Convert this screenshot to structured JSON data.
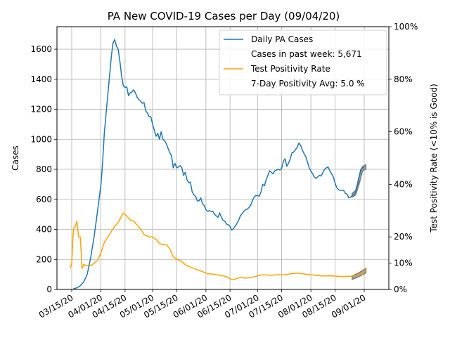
{
  "chart_data": {
    "type": "line",
    "title": "PA New COVID-19 Cases per Day (09/04/20)",
    "xlabel": "",
    "ylabel": "Cases",
    "ylabel_right": "Test Positivity Rate (<10% is Good)",
    "ylim": [
      0,
      1750
    ],
    "ylim_right": [
      0,
      100
    ],
    "grid": true,
    "legend_position": "top-right",
    "x_ticks": [
      {
        "date": "2020-03-15",
        "label": "03/15/20"
      },
      {
        "date": "2020-04-01",
        "label": "04/01/20"
      },
      {
        "date": "2020-04-15",
        "label": "04/15/20"
      },
      {
        "date": "2020-05-01",
        "label": "05/01/20"
      },
      {
        "date": "2020-05-15",
        "label": "05/15/20"
      },
      {
        "date": "2020-06-01",
        "label": "06/01/20"
      },
      {
        "date": "2020-06-15",
        "label": "06/15/20"
      },
      {
        "date": "2020-07-01",
        "label": "07/01/20"
      },
      {
        "date": "2020-07-15",
        "label": "07/15/20"
      },
      {
        "date": "2020-08-01",
        "label": "08/01/20"
      },
      {
        "date": "2020-08-15",
        "label": "08/15/20"
      },
      {
        "date": "2020-09-01",
        "label": "09/01/20"
      }
    ],
    "y_ticks": [
      0,
      200,
      400,
      600,
      800,
      1000,
      1200,
      1400,
      1600
    ],
    "y_ticks_right": [
      {
        "value": 0,
        "label": "0%"
      },
      {
        "value": 10,
        "label": "10%"
      },
      {
        "value": 20,
        "label": "20%"
      },
      {
        "value": 40,
        "label": "40%"
      },
      {
        "value": 60,
        "label": "60%"
      },
      {
        "value": 80,
        "label": "80%"
      },
      {
        "value": 100,
        "label": "100%"
      }
    ],
    "series": [
      {
        "name": "Daily PA Cases",
        "axis": "left",
        "color": "#1f77b4",
        "points": [
          [
            "2020-03-16",
            5
          ],
          [
            "2020-03-18",
            10
          ],
          [
            "2020-03-20",
            25
          ],
          [
            "2020-03-22",
            50
          ],
          [
            "2020-03-24",
            100
          ],
          [
            "2020-03-26",
            210
          ],
          [
            "2020-03-28",
            350
          ],
          [
            "2020-03-30",
            520
          ],
          [
            "2020-04-01",
            700
          ],
          [
            "2020-04-02",
            850
          ],
          [
            "2020-04-03",
            1050
          ],
          [
            "2020-04-05",
            1300
          ],
          [
            "2020-04-07",
            1550
          ],
          [
            "2020-04-08",
            1640
          ],
          [
            "2020-04-09",
            1665
          ],
          [
            "2020-04-10",
            1620
          ],
          [
            "2020-04-11",
            1600
          ],
          [
            "2020-04-12",
            1520
          ],
          [
            "2020-04-13",
            1420
          ],
          [
            "2020-04-14",
            1355
          ],
          [
            "2020-04-15",
            1345
          ],
          [
            "2020-04-16",
            1350
          ],
          [
            "2020-04-17",
            1290
          ],
          [
            "2020-04-18",
            1310
          ],
          [
            "2020-04-19",
            1315
          ],
          [
            "2020-04-20",
            1330
          ],
          [
            "2020-04-21",
            1310
          ],
          [
            "2020-04-22",
            1280
          ],
          [
            "2020-04-23",
            1265
          ],
          [
            "2020-04-24",
            1255
          ],
          [
            "2020-04-25",
            1240
          ],
          [
            "2020-04-26",
            1245
          ],
          [
            "2020-04-27",
            1190
          ],
          [
            "2020-04-28",
            1175
          ],
          [
            "2020-04-29",
            1150
          ],
          [
            "2020-04-30",
            1150
          ],
          [
            "2020-05-01",
            1100
          ],
          [
            "2020-05-02",
            1060
          ],
          [
            "2020-05-03",
            1020
          ],
          [
            "2020-05-04",
            1040
          ],
          [
            "2020-05-05",
            1000
          ],
          [
            "2020-05-06",
            1050
          ],
          [
            "2020-05-07",
            1000
          ],
          [
            "2020-05-08",
            990
          ],
          [
            "2020-05-09",
            970
          ],
          [
            "2020-05-10",
            940
          ],
          [
            "2020-05-11",
            910
          ],
          [
            "2020-05-12",
            890
          ],
          [
            "2020-05-13",
            810
          ],
          [
            "2020-05-14",
            840
          ],
          [
            "2020-05-15",
            810
          ],
          [
            "2020-05-16",
            815
          ],
          [
            "2020-05-17",
            825
          ],
          [
            "2020-05-18",
            810
          ],
          [
            "2020-05-19",
            760
          ],
          [
            "2020-05-20",
            780
          ],
          [
            "2020-05-21",
            730
          ],
          [
            "2020-05-22",
            710
          ],
          [
            "2020-05-23",
            715
          ],
          [
            "2020-05-24",
            650
          ],
          [
            "2020-05-25",
            630
          ],
          [
            "2020-05-26",
            620
          ],
          [
            "2020-05-27",
            590
          ],
          [
            "2020-05-28",
            590
          ],
          [
            "2020-05-29",
            610
          ],
          [
            "2020-05-30",
            570
          ],
          [
            "2020-05-31",
            560
          ],
          [
            "2020-06-01",
            530
          ],
          [
            "2020-06-02",
            520
          ],
          [
            "2020-06-03",
            525
          ],
          [
            "2020-06-04",
            520
          ],
          [
            "2020-06-05",
            520
          ],
          [
            "2020-06-06",
            500
          ],
          [
            "2020-06-07",
            490
          ],
          [
            "2020-06-08",
            480
          ],
          [
            "2020-06-09",
            510
          ],
          [
            "2020-06-10",
            480
          ],
          [
            "2020-06-11",
            460
          ],
          [
            "2020-06-12",
            455
          ],
          [
            "2020-06-13",
            435
          ],
          [
            "2020-06-14",
            430
          ],
          [
            "2020-06-15",
            420
          ],
          [
            "2020-06-16",
            395
          ],
          [
            "2020-06-17",
            405
          ],
          [
            "2020-06-18",
            420
          ],
          [
            "2020-06-19",
            440
          ],
          [
            "2020-06-20",
            460
          ],
          [
            "2020-06-21",
            490
          ],
          [
            "2020-06-22",
            505
          ],
          [
            "2020-06-23",
            520
          ],
          [
            "2020-06-24",
            530
          ],
          [
            "2020-06-25",
            535
          ],
          [
            "2020-06-26",
            545
          ],
          [
            "2020-06-27",
            560
          ],
          [
            "2020-06-28",
            590
          ],
          [
            "2020-06-29",
            615
          ],
          [
            "2020-06-30",
            625
          ],
          [
            "2020-07-01",
            625
          ],
          [
            "2020-07-02",
            620
          ],
          [
            "2020-07-03",
            650
          ],
          [
            "2020-07-04",
            700
          ],
          [
            "2020-07-05",
            690
          ],
          [
            "2020-07-06",
            730
          ],
          [
            "2020-07-07",
            760
          ],
          [
            "2020-07-08",
            790
          ],
          [
            "2020-07-09",
            780
          ],
          [
            "2020-07-10",
            770
          ],
          [
            "2020-07-11",
            790
          ],
          [
            "2020-07-12",
            795
          ],
          [
            "2020-07-13",
            800
          ],
          [
            "2020-07-14",
            795
          ],
          [
            "2020-07-15",
            805
          ],
          [
            "2020-07-16",
            855
          ],
          [
            "2020-07-17",
            870
          ],
          [
            "2020-07-18",
            820
          ],
          [
            "2020-07-19",
            840
          ],
          [
            "2020-07-20",
            870
          ],
          [
            "2020-07-21",
            910
          ],
          [
            "2020-07-22",
            915
          ],
          [
            "2020-07-23",
            930
          ],
          [
            "2020-07-24",
            945
          ],
          [
            "2020-07-25",
            975
          ],
          [
            "2020-07-26",
            960
          ],
          [
            "2020-07-27",
            930
          ],
          [
            "2020-07-28",
            905
          ],
          [
            "2020-07-29",
            885
          ],
          [
            "2020-07-30",
            850
          ],
          [
            "2020-07-31",
            810
          ],
          [
            "2020-08-01",
            790
          ],
          [
            "2020-08-02",
            770
          ],
          [
            "2020-08-03",
            750
          ],
          [
            "2020-08-04",
            740
          ],
          [
            "2020-08-05",
            750
          ],
          [
            "2020-08-06",
            760
          ],
          [
            "2020-08-07",
            755
          ],
          [
            "2020-08-08",
            780
          ],
          [
            "2020-08-09",
            800
          ],
          [
            "2020-08-10",
            810
          ],
          [
            "2020-08-11",
            815
          ],
          [
            "2020-08-12",
            790
          ],
          [
            "2020-08-13",
            770
          ],
          [
            "2020-08-14",
            750
          ],
          [
            "2020-08-15",
            710
          ],
          [
            "2020-08-16",
            680
          ],
          [
            "2020-08-17",
            665
          ],
          [
            "2020-08-18",
            660
          ],
          [
            "2020-08-19",
            660
          ],
          [
            "2020-08-20",
            660
          ],
          [
            "2020-08-21",
            640
          ],
          [
            "2020-08-22",
            635
          ],
          [
            "2020-08-23",
            610
          ],
          [
            "2020-08-24",
            615
          ],
          [
            "2020-08-25",
            625
          ],
          [
            "2020-08-26",
            630
          ],
          [
            "2020-08-27",
            650
          ],
          [
            "2020-08-28",
            690
          ],
          [
            "2020-08-29",
            750
          ],
          [
            "2020-08-30",
            800
          ],
          [
            "2020-08-31",
            810
          ],
          [
            "2020-09-01",
            810
          ]
        ]
      },
      {
        "name": "Test Positivity Rate",
        "axis": "right",
        "color": "#ffa500",
        "points": [
          [
            "2020-03-14",
            8
          ],
          [
            "2020-03-15",
            10
          ],
          [
            "2020-03-16",
            23
          ],
          [
            "2020-03-17",
            24
          ],
          [
            "2020-03-18",
            26
          ],
          [
            "2020-03-19",
            20
          ],
          [
            "2020-03-20",
            20
          ],
          [
            "2020-03-21",
            8
          ],
          [
            "2020-03-22",
            9.5
          ],
          [
            "2020-03-24",
            9
          ],
          [
            "2020-03-26",
            9
          ],
          [
            "2020-03-28",
            10
          ],
          [
            "2020-03-30",
            11
          ],
          [
            "2020-04-01",
            14
          ],
          [
            "2020-04-03",
            18
          ],
          [
            "2020-04-05",
            20
          ],
          [
            "2020-04-07",
            22
          ],
          [
            "2020-04-09",
            24
          ],
          [
            "2020-04-11",
            25.5
          ],
          [
            "2020-04-13",
            28
          ],
          [
            "2020-04-14",
            29
          ],
          [
            "2020-04-16",
            28
          ],
          [
            "2020-04-18",
            26.5
          ],
          [
            "2020-04-20",
            26
          ],
          [
            "2020-04-22",
            24.5
          ],
          [
            "2020-04-24",
            23
          ],
          [
            "2020-04-26",
            21
          ],
          [
            "2020-04-27",
            20.5
          ],
          [
            "2020-04-28",
            20.3
          ],
          [
            "2020-04-29",
            20
          ],
          [
            "2020-05-01",
            20
          ],
          [
            "2020-05-03",
            19
          ],
          [
            "2020-05-05",
            17.5
          ],
          [
            "2020-05-07",
            17
          ],
          [
            "2020-05-09",
            17
          ],
          [
            "2020-05-11",
            15.5
          ],
          [
            "2020-05-13",
            12.5
          ],
          [
            "2020-05-15",
            11.5
          ],
          [
            "2020-05-17",
            11
          ],
          [
            "2020-05-19",
            10
          ],
          [
            "2020-05-21",
            9
          ],
          [
            "2020-05-23",
            8.5
          ],
          [
            "2020-05-25",
            8
          ],
          [
            "2020-05-27",
            7.5
          ],
          [
            "2020-05-29",
            7
          ],
          [
            "2020-05-31",
            6.5
          ],
          [
            "2020-06-02",
            6
          ],
          [
            "2020-06-05",
            5.8
          ],
          [
            "2020-06-08",
            5.5
          ],
          [
            "2020-06-11",
            5.2
          ],
          [
            "2020-06-13",
            4.8
          ],
          [
            "2020-06-15",
            4
          ],
          [
            "2020-06-17",
            3.7
          ],
          [
            "2020-06-19",
            4.2
          ],
          [
            "2020-06-21",
            4.5
          ],
          [
            "2020-06-24",
            4.3
          ],
          [
            "2020-06-27",
            4.5
          ],
          [
            "2020-06-30",
            5
          ],
          [
            "2020-07-03",
            5.5
          ],
          [
            "2020-07-06",
            5.5
          ],
          [
            "2020-07-09",
            5.4
          ],
          [
            "2020-07-12",
            5.6
          ],
          [
            "2020-07-15",
            5.5
          ],
          [
            "2020-07-18",
            5.7
          ],
          [
            "2020-07-21",
            6
          ],
          [
            "2020-07-24",
            6.2
          ],
          [
            "2020-07-27",
            6
          ],
          [
            "2020-07-30",
            5.7
          ],
          [
            "2020-08-02",
            5.5
          ],
          [
            "2020-08-05",
            5.3
          ],
          [
            "2020-08-08",
            5.1
          ],
          [
            "2020-08-11",
            5.2
          ],
          [
            "2020-08-14",
            5.1
          ],
          [
            "2020-08-17",
            5
          ],
          [
            "2020-08-20",
            4.8
          ],
          [
            "2020-08-22",
            5
          ],
          [
            "2020-08-25",
            5
          ],
          [
            "2020-08-28",
            5.5
          ],
          [
            "2020-08-31",
            6
          ],
          [
            "2020-09-02",
            7.5
          ]
        ]
      }
    ],
    "bands": [
      {
        "axis": "left",
        "color": "#808080",
        "points": [
          [
            "2020-08-25",
            615,
            640
          ],
          [
            "2020-08-27",
            630,
            660
          ],
          [
            "2020-08-29",
            700,
            750
          ],
          [
            "2020-08-31",
            790,
            820
          ],
          [
            "2020-09-02",
            800,
            830
          ]
        ]
      },
      {
        "axis": "right",
        "color": "#808080",
        "points": [
          [
            "2020-08-25",
            3.8,
            5.2
          ],
          [
            "2020-08-28",
            4.6,
            6
          ],
          [
            "2020-08-31",
            5.6,
            7.2
          ],
          [
            "2020-09-02",
            6.3,
            8
          ]
        ]
      }
    ],
    "legend": [
      {
        "label": "Daily PA Cases",
        "color": "#1f77b4",
        "marker": "line"
      },
      {
        "label": "Cases in past week: 5,671",
        "color": "",
        "marker": "none"
      },
      {
        "label": "Test Positivity Rate",
        "color": "#ffa500",
        "marker": "line"
      },
      {
        "label": "7-Day Positivity Avg: 5.0 %",
        "color": "",
        "marker": "none"
      }
    ]
  }
}
